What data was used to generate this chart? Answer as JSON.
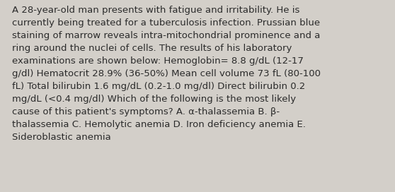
{
  "text": "A 28-year-old man presents with fatigue and irritability. He is\ncurrently being treated for a tuberculosis infection. Prussian blue\nstaining of marrow reveals intra-mitochondrial prominence and a\nring around the nuclei of cells. The results of his laboratory\nexaminations are shown below: Hemoglobin= 8.8 g/dL (12-17\ng/dl) Hematocrit 28.9% (36-50%) Mean cell volume 73 fL (80-100\nfL) Total bilirubin 1.6 mg/dL (0.2-1.0 mg/dl) Direct bilirubin 0.2\nmg/dL (<0.4 mg/dl) Which of the following is the most likely\ncause of this patient's symptoms? A. α-thalassemia B. β-\nthalassemia C. Hemolytic anemia D. Iron deficiency anemia E.\nSideroblastic anemia",
  "background_color": "#d3cfc9",
  "text_color": "#2b2b2b",
  "font_size": 9.5,
  "fig_width": 5.58,
  "fig_height": 2.72,
  "dpi": 100
}
